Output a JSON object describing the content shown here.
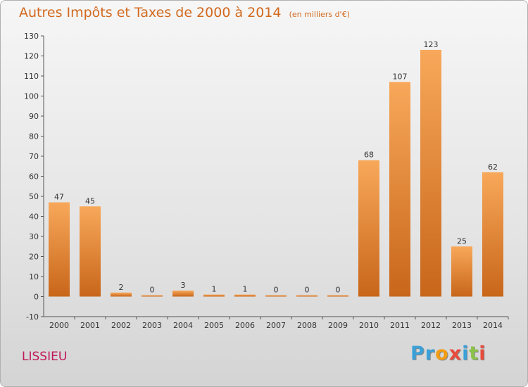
{
  "header": {
    "title": "Autres Impôts et Taxes de 2000 à 2014",
    "subtitle": "(en milliers d'€)"
  },
  "footer": {
    "commune": "LISSIEU",
    "logo": [
      "P",
      "r",
      "o",
      "x",
      "i",
      "t",
      "i"
    ]
  },
  "colors": {
    "bar_light": "#f8a85a",
    "bar_dark": "#c8661a",
    "title": "#d2691e",
    "commune": "#c0185a",
    "logo": [
      "#3aa0d8",
      "#3aa0d8",
      "#f39c12",
      "#e74c3c",
      "#3aa0d8",
      "#8bc34a",
      "#e74c3c"
    ]
  },
  "chart_data": {
    "type": "bar",
    "title": "Autres Impôts et Taxes de 2000 à 2014",
    "subtitle": "(en milliers d'€)",
    "categories": [
      "2000",
      "2001",
      "2002",
      "2003",
      "2004",
      "2005",
      "2006",
      "2007",
      "2008",
      "2009",
      "2010",
      "2011",
      "2012",
      "2013",
      "2014"
    ],
    "values": [
      47,
      45,
      2,
      0,
      3,
      1,
      1,
      0,
      0,
      0,
      68,
      107,
      123,
      25,
      62
    ],
    "ylim": [
      -10,
      130
    ],
    "yticks": [
      -10,
      0,
      10,
      20,
      30,
      40,
      50,
      60,
      70,
      80,
      90,
      100,
      110,
      120,
      130
    ],
    "grid": false,
    "legend": "none"
  }
}
